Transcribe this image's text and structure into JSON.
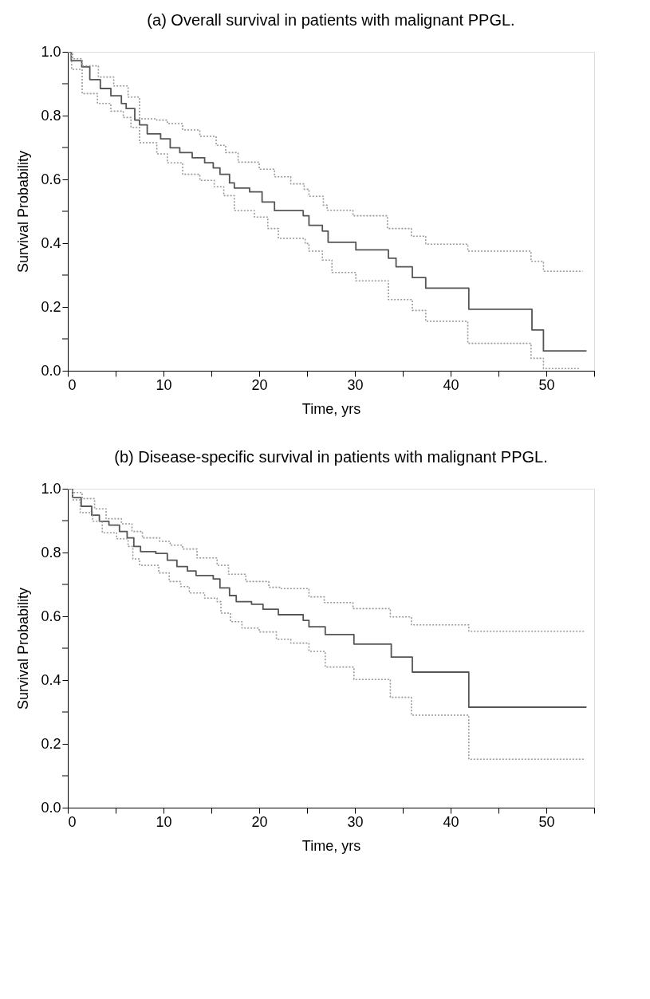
{
  "chart_data": [
    {
      "type": "step",
      "title": "(a)  Overall survival in patients with malignant PPGL.",
      "xlabel": "Time, yrs",
      "ylabel": "Survival Probability",
      "xlim": [
        0,
        55
      ],
      "ylim": [
        0,
        1
      ],
      "xticks": [
        0,
        {
          "value": 5,
          "label": null
        },
        10,
        {
          "value": 15,
          "label": null
        },
        20,
        {
          "value": 25,
          "label": null
        },
        30,
        {
          "value": 35,
          "label": null
        },
        40,
        {
          "value": 45,
          "label": null
        },
        50,
        {
          "value": 55,
          "label": null
        }
      ],
      "yticks": [
        {
          "value": 0,
          "label": "0.0"
        },
        {
          "value": 0.1,
          "label": null
        },
        0.2,
        {
          "value": 0.3,
          "label": null
        },
        0.4,
        {
          "value": 0.5,
          "label": null
        },
        0.6,
        {
          "value": 0.7,
          "label": null
        },
        0.8,
        {
          "value": 0.9,
          "label": null
        },
        {
          "value": 1,
          "label": "1.0"
        }
      ],
      "grid": false,
      "series": [
        {
          "color": "#555555",
          "line_style": "solid",
          "x": [
            0,
            0.36,
            1.46,
            2.3,
            3.4,
            4.5,
            5.6,
            6.1,
            7.0,
            7.5,
            8.3,
            9.7,
            10.7,
            11.7,
            13.0,
            14.3,
            15.2,
            15.9,
            16.9,
            17.4,
            19.0,
            20.3,
            21.6,
            24.6,
            25.2,
            26.6,
            27.2,
            30.1,
            33.5,
            34.3,
            36.0,
            37.4,
            41.9,
            48.5,
            49.7,
            54.2
          ],
          "values": [
            1.0,
            0.972,
            0.953,
            0.913,
            0.885,
            0.862,
            0.838,
            0.822,
            0.786,
            0.771,
            0.743,
            0.727,
            0.699,
            0.684,
            0.668,
            0.652,
            0.636,
            0.616,
            0.589,
            0.573,
            0.561,
            0.529,
            0.502,
            0.486,
            0.456,
            0.438,
            0.403,
            0.379,
            0.353,
            0.326,
            0.292,
            0.259,
            0.193,
            0.128,
            0.062,
            0.062
          ]
        },
        {
          "color": "#999999",
          "line_style": "dotted",
          "x": [
            0,
            0.5,
            1.5,
            3.2,
            4.8,
            6.3,
            7.5,
            9.3,
            10.4,
            12.0,
            13.8,
            15.5,
            16.5,
            17.8,
            20.0,
            21.6,
            23.3,
            24.7,
            25.2,
            26.7,
            27.1,
            29.8,
            33.4,
            35.9,
            37.4,
            41.8,
            48.4,
            49.7,
            53.8
          ],
          "values": [
            1.0,
            0.978,
            0.956,
            0.921,
            0.893,
            0.858,
            0.79,
            0.786,
            0.775,
            0.755,
            0.735,
            0.707,
            0.684,
            0.654,
            0.632,
            0.608,
            0.586,
            0.569,
            0.547,
            0.519,
            0.503,
            0.486,
            0.446,
            0.422,
            0.397,
            0.375,
            0.343,
            0.312,
            0.312
          ]
        },
        {
          "color": "#999999",
          "line_style": "dotted",
          "x": [
            0,
            0.4,
            1.5,
            3.1,
            4.5,
            5.8,
            6.6,
            7.5,
            9.3,
            10.4,
            12.0,
            13.8,
            15.3,
            16.3,
            17.4,
            19.5,
            20.9,
            22.0,
            24.8,
            25.2,
            26.6,
            27.6,
            30.1,
            33.5,
            36.0,
            37.4,
            41.8,
            48.4,
            49.7,
            53.5
          ],
          "values": [
            1.0,
            0.945,
            0.869,
            0.838,
            0.814,
            0.794,
            0.763,
            0.715,
            0.68,
            0.652,
            0.616,
            0.597,
            0.577,
            0.549,
            0.502,
            0.482,
            0.446,
            0.415,
            0.399,
            0.375,
            0.347,
            0.308,
            0.282,
            0.223,
            0.189,
            0.155,
            0.086,
            0.039,
            0.007,
            0.007
          ]
        }
      ]
    },
    {
      "type": "step",
      "title": "(b)  Disease-specific survival in patients with malignant PPGL.",
      "xlabel": "Time, yrs",
      "ylabel": "Survival Probability",
      "xlim": [
        0,
        55
      ],
      "ylim": [
        0,
        1
      ],
      "xticks": [
        0,
        {
          "value": 5,
          "label": null
        },
        10,
        {
          "value": 15,
          "label": null
        },
        20,
        {
          "value": 25,
          "label": null
        },
        30,
        {
          "value": 35,
          "label": null
        },
        40,
        {
          "value": 45,
          "label": null
        },
        50,
        {
          "value": 55,
          "label": null
        }
      ],
      "yticks": [
        {
          "value": 0,
          "label": "0.0"
        },
        {
          "value": 0.1,
          "label": null
        },
        0.2,
        {
          "value": 0.3,
          "label": null
        },
        0.4,
        {
          "value": 0.5,
          "label": null
        },
        0.6,
        {
          "value": 0.7,
          "label": null
        },
        0.8,
        {
          "value": 0.9,
          "label": null
        },
        {
          "value": 1,
          "label": "1.0"
        }
      ],
      "grid": false,
      "series": [
        {
          "color": "#555555",
          "line_style": "solid",
          "x": [
            0,
            0.5,
            1.4,
            2.5,
            3.3,
            4.3,
            5.4,
            6.2,
            6.9,
            7.6,
            9.2,
            10.4,
            11.4,
            12.5,
            13.4,
            15.2,
            15.9,
            16.9,
            17.6,
            19.2,
            20.4,
            22.0,
            24.6,
            25.2,
            26.9,
            29.9,
            33.8,
            36.0,
            41.9,
            54.2
          ],
          "values": [
            1.0,
            0.972,
            0.945,
            0.917,
            0.898,
            0.886,
            0.866,
            0.846,
            0.819,
            0.803,
            0.797,
            0.776,
            0.756,
            0.742,
            0.728,
            0.717,
            0.689,
            0.665,
            0.646,
            0.638,
            0.622,
            0.605,
            0.587,
            0.567,
            0.543,
            0.513,
            0.472,
            0.425,
            0.315,
            0.315
          ]
        },
        {
          "color": "#999999",
          "line_style": "dotted",
          "x": [
            0,
            0.5,
            1.5,
            2.8,
            4.0,
            5.6,
            6.7,
            7.8,
            9.6,
            10.7,
            12.0,
            13.5,
            15.6,
            16.8,
            18.6,
            21.0,
            22.3,
            25.2,
            26.8,
            29.8,
            33.7,
            35.9,
            41.9,
            54.0
          ],
          "values": [
            1.0,
            0.988,
            0.969,
            0.937,
            0.906,
            0.89,
            0.866,
            0.846,
            0.835,
            0.823,
            0.811,
            0.783,
            0.76,
            0.732,
            0.709,
            0.691,
            0.687,
            0.661,
            0.643,
            0.624,
            0.598,
            0.573,
            0.553,
            0.553
          ]
        },
        {
          "color": "#999999",
          "line_style": "dotted",
          "x": [
            0,
            0.5,
            1.3,
            2.6,
            3.6,
            5.1,
            6.3,
            6.8,
            7.5,
            9.5,
            10.6,
            11.8,
            12.7,
            14.3,
            15.6,
            16.0,
            17.0,
            18.2,
            20.0,
            21.8,
            23.3,
            25.2,
            26.9,
            29.9,
            33.7,
            35.9,
            41.9,
            54.0
          ],
          "values": [
            1.0,
            0.965,
            0.925,
            0.898,
            0.862,
            0.843,
            0.819,
            0.78,
            0.76,
            0.736,
            0.709,
            0.693,
            0.673,
            0.657,
            0.646,
            0.61,
            0.583,
            0.563,
            0.551,
            0.528,
            0.516,
            0.49,
            0.441,
            0.402,
            0.346,
            0.29,
            0.152,
            0.152
          ]
        }
      ]
    }
  ]
}
